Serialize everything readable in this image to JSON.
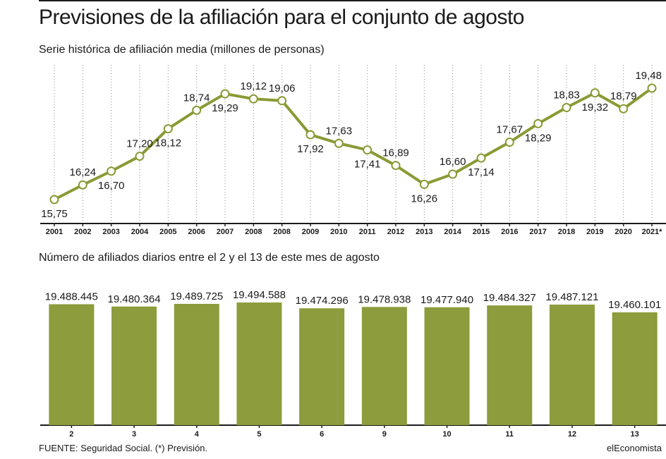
{
  "title": "Previsiones de la afiliación para el conjunto de agosto",
  "footer": {
    "source": "FUENTE: Seguridad Social. (*) Previsión.",
    "brand": "elEconomista"
  },
  "colors": {
    "accent": "#8a9a35",
    "bar": "#8d9c3c",
    "point_fill": "#ffffff",
    "axis": "#1a1a1a",
    "grid": "#888888"
  },
  "chart_data": [
    {
      "type": "line",
      "subtitle": "Serie histórica de afiliación media (millones de personas)",
      "categories": [
        "2001",
        "2002",
        "2003",
        "2004",
        "2005",
        "2006",
        "2007",
        "2008",
        "2008",
        "2009",
        "2010",
        "2011",
        "2012",
        "2013",
        "2014",
        "2015",
        "2016",
        "2017",
        "2018",
        "2019",
        "2020",
        "2021*"
      ],
      "series": [
        {
          "values": [
            15.75,
            16.24,
            16.7,
            17.2,
            18.12,
            18.74,
            19.29,
            19.12,
            19.06,
            17.92,
            17.63,
            17.41,
            16.89,
            16.26,
            16.6,
            17.14,
            17.67,
            18.29,
            18.83,
            19.32,
            18.79,
            19.48
          ]
        }
      ],
      "labels": [
        "15,75",
        "16,24",
        "16,70",
        "17,20",
        "18,12",
        "18,74",
        "19,29",
        "19,12",
        "19,06",
        "17,92",
        "17,63",
        "17,41",
        "16,89",
        "16,26",
        "16,60",
        "17,14",
        "17,67",
        "18,29",
        "18,83",
        "19,32",
        "18,79",
        "19,48"
      ],
      "label_position": [
        "below",
        "above",
        "below",
        "above",
        "below",
        "above",
        "below",
        "above",
        "above",
        "below",
        "above",
        "below",
        "above",
        "below",
        "above",
        "below",
        "above",
        "below",
        "above",
        "below",
        "above",
        "above"
      ],
      "grid": "vertical-dotted"
    },
    {
      "type": "bar",
      "subtitle": "Número de afiliados diarios entre el 2 y el 13 de este mes de agosto",
      "categories": [
        "2",
        "3",
        "4",
        "5",
        "6",
        "9",
        "10",
        "11",
        "12",
        "13"
      ],
      "values": [
        19488445,
        19480364,
        19489725,
        19494588,
        19474296,
        19478938,
        19477940,
        19484327,
        19487121,
        19460101
      ],
      "labels": [
        "19.488.445",
        "19.480.364",
        "19.489.725",
        "19.494.588",
        "19.474.296",
        "19.478.938",
        "19.477.940",
        "19.484.327",
        "19.487.121",
        "19.460.101"
      ]
    }
  ]
}
